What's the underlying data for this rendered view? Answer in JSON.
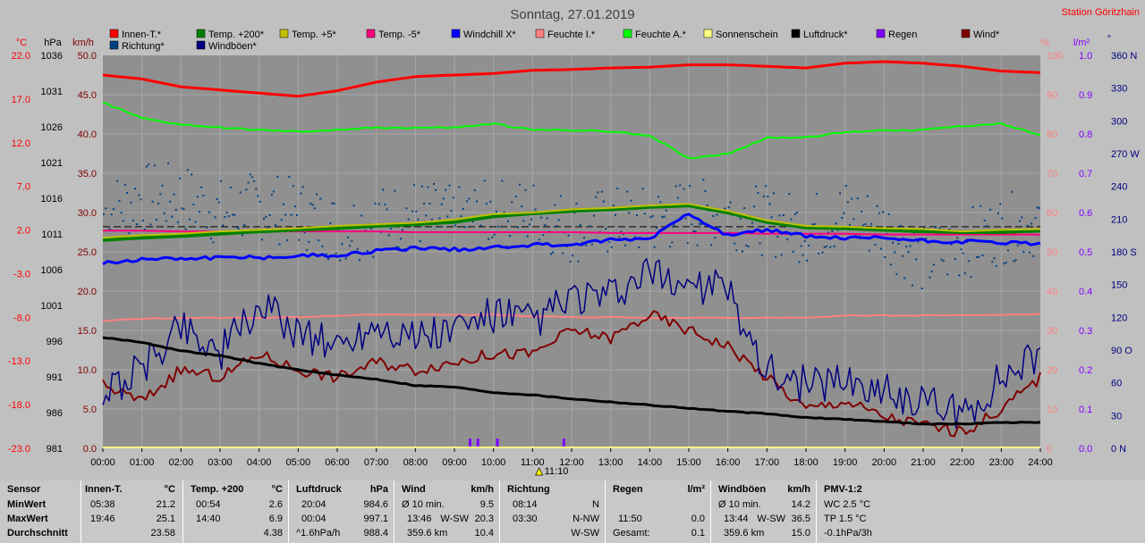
{
  "header": {
    "title": "Sonntag, 27.01.2019",
    "station": "Station Göritzhain"
  },
  "colors": {
    "innen": "#ff0000",
    "temp200": "#008000",
    "temp5": "#c0c000",
    "tempm5": "#ff0080",
    "windchill": "#0000ff",
    "feuchteI": "#ff8080",
    "feuchteA": "#00ff00",
    "sonne": "#ffff80",
    "luftdruck": "#000000",
    "regen": "#8000ff",
    "wind": "#800000",
    "richtung": "#004080",
    "windboeen": "#000080",
    "plot_bg": "#909090"
  },
  "legend": [
    {
      "label": "Innen-T.*",
      "color": "#ff0000"
    },
    {
      "label": "Temp. +200*",
      "color": "#008000"
    },
    {
      "label": "Temp. +5*",
      "color": "#c0c000"
    },
    {
      "label": "Temp. -5*",
      "color": "#ff0080"
    },
    {
      "label": "Windchill X*",
      "color": "#0000ff"
    },
    {
      "label": "Feuchte I.*",
      "color": "#ff8080"
    },
    {
      "label": "Feuchte A.*",
      "color": "#00ff00"
    },
    {
      "label": "Sonnenschein",
      "color": "#ffff80"
    },
    {
      "label": "Luftdruck*",
      "color": "#000000"
    },
    {
      "label": "Regen",
      "color": "#8000ff"
    },
    {
      "label": "Wind*",
      "color": "#800000"
    },
    {
      "label": "Richtung*",
      "color": "#004080"
    },
    {
      "label": "Windböen*",
      "color": "#000080"
    }
  ],
  "axis_units": {
    "temp": "°C",
    "press": "hPa",
    "wind": "km/h",
    "hum": "%",
    "rain": "l/m²",
    "dir": "°"
  },
  "axes": {
    "temp": [
      "22.0",
      "17.0",
      "12.0",
      "7.0",
      "2.0",
      "-3.0",
      "-8.0",
      "-13.0",
      "-18.0",
      "-23.0"
    ],
    "press": [
      "1036",
      "1031",
      "1026",
      "1021",
      "1016",
      "1011",
      "1006",
      "1001",
      "996",
      "991",
      "986",
      "981"
    ],
    "wind": [
      "50.0",
      "45.0",
      "40.0",
      "35.0",
      "30.0",
      "25.0",
      "20.0",
      "15.0",
      "10.0",
      "5.0",
      "0.0"
    ],
    "hum": [
      "100",
      "90",
      "80",
      "70",
      "60",
      "50",
      "40",
      "30",
      "20",
      "10",
      "0"
    ],
    "rain": [
      "1.0",
      "0.9",
      "0.8",
      "0.7",
      "0.6",
      "0.5",
      "0.4",
      "0.3",
      "0.2",
      "0.1",
      "0.0"
    ],
    "dir": [
      "360 N",
      "330",
      "300",
      "270 W",
      "240",
      "210",
      "180 S",
      "150",
      "120",
      "90 O",
      "60",
      "30",
      "0 N"
    ]
  },
  "chart_data": {
    "type": "line",
    "title": "Sonntag, 27.01.2019",
    "x_ticks": [
      "00:00",
      "01:00",
      "02:00",
      "03:00",
      "04:00",
      "05:00",
      "06:00",
      "07:00",
      "08:00",
      "09:00",
      "10:00",
      "11:00",
      "12:00",
      "13:00",
      "14:00",
      "15:00",
      "16:00",
      "17:00",
      "18:00",
      "19:00",
      "20:00",
      "21:00",
      "22:00",
      "23:00",
      "24:00"
    ],
    "x_marker": "11:10",
    "ylim_wind_kmh": [
      0,
      50
    ],
    "ylim_press_hpa": [
      981,
      1036
    ],
    "ylim_temp_c": [
      -23,
      22
    ],
    "ylim_hum_pct": [
      0,
      100
    ],
    "ylim_dir_deg": [
      0,
      360
    ],
    "hours": [
      0,
      1,
      2,
      3,
      4,
      5,
      6,
      7,
      8,
      9,
      10,
      11,
      12,
      13,
      14,
      15,
      16,
      17,
      18,
      19,
      20,
      21,
      22,
      23,
      24
    ],
    "series": [
      {
        "name": "Innen-T.*",
        "unit": "km/h",
        "values": [
          47.5,
          47,
          46,
          45.6,
          45.2,
          44.8,
          45.5,
          46.6,
          47.3,
          47.5,
          47.7,
          48.1,
          48.2,
          48.4,
          48.5,
          48.8,
          48.8,
          48.6,
          48.4,
          49,
          49.2,
          49,
          48.6,
          48,
          47.8
        ]
      },
      {
        "name": "Feuchte A.*",
        "unit": "km/h",
        "values": [
          44,
          42,
          41.2,
          40.8,
          40.5,
          40.3,
          40.5,
          40.8,
          40.8,
          40.8,
          41.3,
          40.5,
          40.5,
          40.3,
          39.8,
          36.9,
          37.5,
          39.5,
          39.6,
          40.2,
          40.5,
          40.5,
          41,
          41.3,
          39.8
        ]
      },
      {
        "name": "Temp. +200*",
        "unit": "km/h",
        "values": [
          26.5,
          26.8,
          27,
          27.3,
          27.6,
          27.8,
          28,
          28.3,
          28.5,
          28.8,
          29.5,
          29.9,
          30.2,
          30.4,
          30.7,
          30.9,
          30,
          28.8,
          28.1,
          28,
          27.8,
          27.6,
          27.5,
          27.5,
          27.7
        ]
      },
      {
        "name": "Temp. +5*",
        "unit": "km/h",
        "values": [
          26.8,
          27.1,
          27.3,
          27.6,
          27.8,
          28,
          28.3,
          28.5,
          28.7,
          29.1,
          29.8,
          30,
          30.4,
          30.6,
          30.9,
          31.1,
          30.2,
          29,
          28.3,
          28.2,
          28,
          27.9,
          27.6,
          27.8,
          27.9
        ]
      },
      {
        "name": "Temp. -5*",
        "unit": "km/h",
        "values": [
          27.7,
          27.7,
          27.6,
          27.6,
          27.6,
          27.6,
          27.6,
          27.6,
          27.5,
          27.5,
          27.5,
          27.5,
          27.5,
          27.4,
          27.4,
          27.4,
          27.4,
          27.3,
          27.3,
          27.3,
          27.2,
          27.2,
          27.2,
          27.2,
          27.2
        ]
      },
      {
        "name": "Windchill X*",
        "unit": "km/h",
        "values": [
          23.5,
          24.1,
          24.2,
          24.3,
          24.3,
          24.5,
          24.6,
          25.1,
          25.5,
          25.3,
          25.6,
          25.9,
          25.9,
          26.5,
          26.7,
          30,
          27,
          27.8,
          27,
          26.7,
          26.8,
          26.4,
          26.3,
          26.2,
          26
        ]
      },
      {
        "name": "Feuchte I.*",
        "unit": "km/h",
        "values": [
          16.2,
          16.5,
          16.6,
          16.6,
          16.6,
          16.7,
          16.9,
          17,
          17,
          17,
          17,
          16.8,
          16.7,
          16.7,
          16.6,
          16.6,
          16.6,
          16.6,
          16.6,
          16.9,
          16.9,
          16.9,
          16.9,
          17,
          17.1
        ]
      },
      {
        "name": "Luftdruck*",
        "unit": "km/h",
        "values": [
          14.1,
          13.5,
          12.4,
          11.8,
          10.8,
          10,
          9.3,
          8.8,
          8,
          7.8,
          7.1,
          6.8,
          6.3,
          5.9,
          5.5,
          5.1,
          4.7,
          4.4,
          3.9,
          3.7,
          3.4,
          3.1,
          3.1,
          3.3,
          3.3
        ]
      },
      {
        "name": "Windböen*",
        "unit": "km/h",
        "values": [
          7,
          10,
          16,
          12,
          18,
          15,
          13,
          16,
          14,
          15,
          17,
          16,
          19,
          19,
          22,
          21,
          20,
          10,
          8,
          9,
          7,
          6,
          4,
          9,
          12
        ]
      },
      {
        "name": "Wind*",
        "unit": "km/h",
        "values": [
          8,
          6,
          10,
          9,
          12,
          10,
          9,
          11,
          10,
          11,
          12,
          12,
          15,
          14,
          17,
          15,
          13,
          9,
          5,
          6,
          4,
          3,
          2,
          5,
          9
        ]
      },
      {
        "name": "Richtung*",
        "unit": "km/h",
        "values": [
          30,
          32,
          32,
          30,
          31,
          30,
          28,
          29,
          30,
          29,
          30,
          30,
          28,
          29,
          29,
          30,
          30,
          29,
          28,
          30,
          28,
          24,
          26,
          28,
          29
        ]
      }
    ],
    "rain_events_hours": [
      9.4,
      9.6,
      10.1,
      11.8
    ],
    "dashed_reference_kmh": 28.2
  },
  "summary": {
    "sensor": {
      "header": "Sensor",
      "rows": [
        "MinWert",
        "MaxWert",
        "Durchschnitt"
      ]
    },
    "innen": {
      "header": "Innen-T.",
      "unit": "°C",
      "rows": [
        [
          "05:38",
          "21.2"
        ],
        [
          "19:46",
          "25.1"
        ],
        [
          "",
          "23.58"
        ]
      ]
    },
    "temp200": {
      "header": "Temp. +200",
      "unit": "°C",
      "rows": [
        [
          "00:54",
          "2.6"
        ],
        [
          "14:40",
          "6.9"
        ],
        [
          "",
          "4.38"
        ]
      ]
    },
    "luftdruck": {
      "header": "Luftdruck",
      "unit": "hPa",
      "rows": [
        [
          "20:04",
          "984.6"
        ],
        [
          "00:04",
          "997.1"
        ],
        [
          "^1.6hPa/h",
          "988.4"
        ]
      ]
    },
    "wind": {
      "header": "Wind",
      "unit": "km/h",
      "rows": [
        [
          "Ø 10 min.",
          "",
          "9.5"
        ],
        [
          "13:46",
          "W-SW",
          "20.3"
        ],
        [
          "359.6 km",
          "",
          "10.4"
        ]
      ]
    },
    "richtung": {
      "header": "Richtung",
      "rows": [
        [
          "08:14",
          "N"
        ],
        [
          "03:30",
          "N-NW"
        ],
        [
          "",
          "W-SW"
        ]
      ]
    },
    "regen": {
      "header": "Regen",
      "unit": "l/m²",
      "rows": [
        [
          "",
          ""
        ],
        [
          "11:50",
          "0.0"
        ],
        [
          "Gesamt:",
          "0.1"
        ]
      ]
    },
    "windboeen": {
      "header": "Windböen",
      "unit": "km/h",
      "rows": [
        [
          "Ø 10 min.",
          "",
          "14.2"
        ],
        [
          "13:44",
          "W-SW",
          "36.5"
        ],
        [
          "359.6 km",
          "",
          "15.0"
        ]
      ]
    },
    "pmv": {
      "header": "PMV-1:2",
      "rows": [
        "WC 2.5 °C",
        "TP 1.5 °C",
        "-0.1hPa/3h"
      ]
    }
  }
}
